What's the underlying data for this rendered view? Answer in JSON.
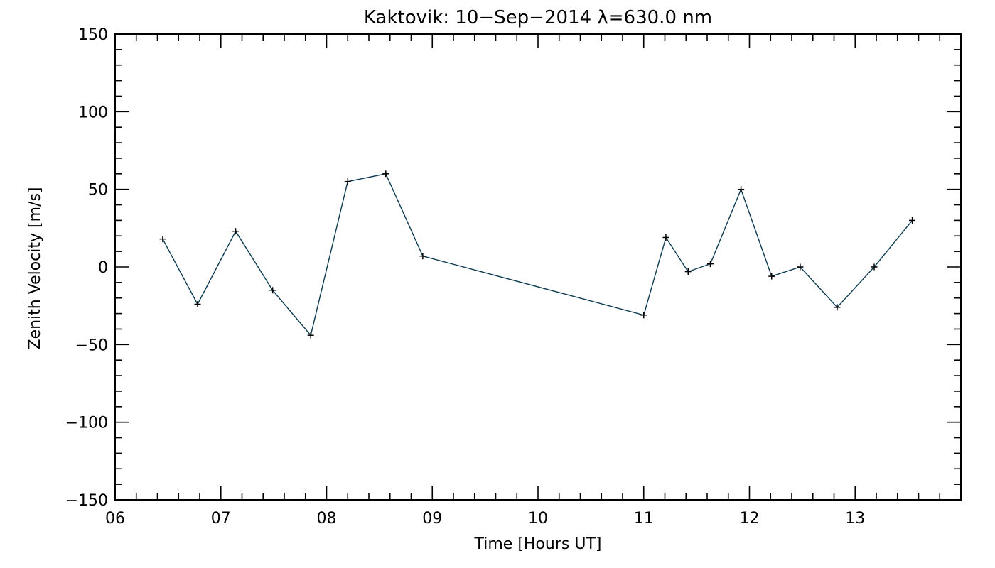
{
  "chart_data": {
    "type": "line",
    "title": "Kaktovik: 10−Sep−2014 λ=630.0 nm",
    "xlabel": "Time [Hours UT]",
    "ylabel": "Zenith Velocity [m/s]",
    "xlim": [
      6,
      14
    ],
    "ylim": [
      -150,
      150
    ],
    "x_ticks": [
      6,
      7,
      8,
      9,
      10,
      11,
      12,
      13
    ],
    "x_tick_labels": [
      "06",
      "07",
      "08",
      "09",
      "10",
      "11",
      "12",
      "13"
    ],
    "y_ticks": [
      -150,
      -100,
      -50,
      0,
      50,
      100,
      150
    ],
    "y_tick_labels": [
      "−150",
      "−100",
      "−50",
      "0",
      "50",
      "100",
      "150"
    ],
    "grid": false,
    "line_color": "#0b3a52",
    "marker_color": "#000000",
    "marker": "plus",
    "series": [
      {
        "x": [
          6.45,
          6.78,
          7.14,
          7.49,
          7.85,
          8.2,
          8.56,
          8.91,
          11.0,
          11.21,
          11.42,
          11.63,
          11.92,
          12.21,
          12.48,
          12.83,
          13.18,
          13.54
        ],
        "y": [
          18,
          -24,
          23,
          -15,
          -44,
          55,
          60,
          7,
          -31,
          19,
          -3,
          2,
          50,
          -6,
          0,
          -26,
          0,
          30
        ]
      }
    ]
  }
}
